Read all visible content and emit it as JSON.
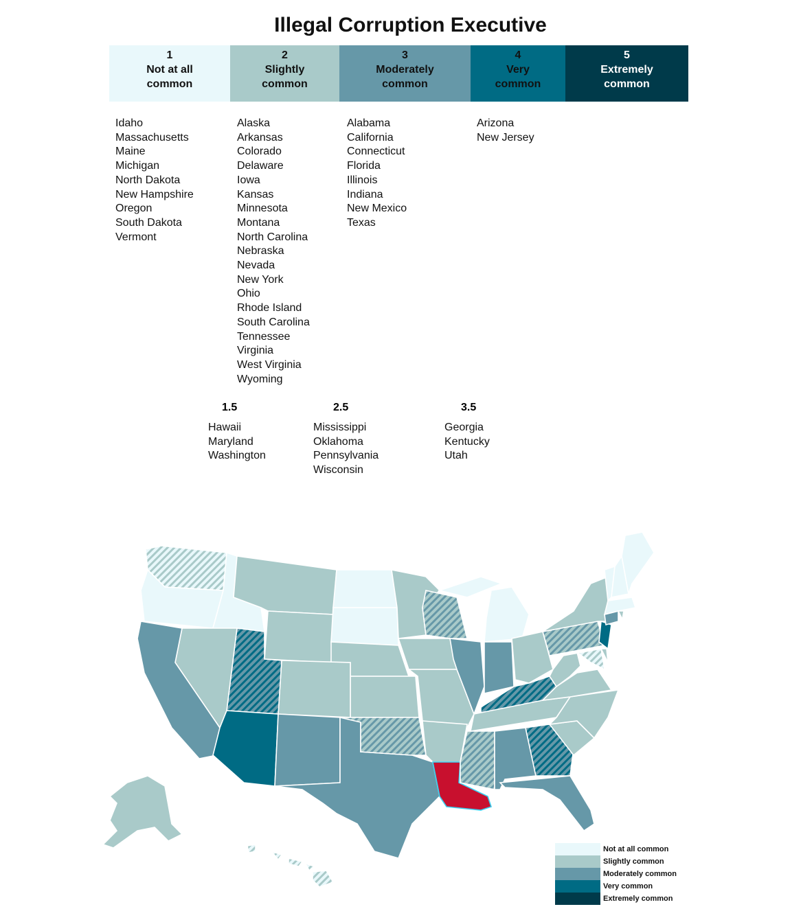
{
  "title": "Illegal Corruption Executive",
  "colors": {
    "1": "#e9f8fb",
    "2": "#a9cac9",
    "3": "#6698a8",
    "4": "#006b84",
    "5": "#003a4a",
    "highlight": "#c8102e"
  },
  "categories": [
    {
      "num": "1",
      "line1": "Not at all",
      "line2": "common",
      "states": [
        "Idaho",
        "Massachusetts",
        "Maine",
        "Michigan",
        "North Dakota",
        "New Hampshire",
        "Oregon",
        "South Dakota",
        "Vermont"
      ]
    },
    {
      "num": "2",
      "line1": "Slightly",
      "line2": "common",
      "states": [
        "Alaska",
        "Arkansas",
        "Colorado",
        "Delaware",
        "Iowa",
        "Kansas",
        "Minnesota",
        "Montana",
        "North Carolina",
        "Nebraska",
        "Nevada",
        "New York",
        "Ohio",
        "Rhode Island",
        "South Carolina",
        "Tennessee",
        "Virginia",
        "West Virginia",
        "Wyoming"
      ]
    },
    {
      "num": "3",
      "line1": "Moderately",
      "line2": "common",
      "states": [
        "Alabama",
        "California",
        "Connecticut",
        "Florida",
        "Illinois",
        "Indiana",
        "New Mexico",
        "Texas"
      ]
    },
    {
      "num": "4",
      "line1": "Very",
      "line2": "common",
      "states": [
        "Arizona",
        "New Jersey"
      ]
    },
    {
      "num": "5",
      "line1": "Extremely",
      "line2": "common",
      "states": []
    }
  ],
  "half_categories": [
    {
      "num": "1.5",
      "states": [
        "Hawaii",
        "Maryland",
        "Washington"
      ]
    },
    {
      "num": "2.5",
      "states": [
        "Mississippi",
        "Oklahoma",
        "Pennsylvania",
        "Wisconsin"
      ]
    },
    {
      "num": "3.5",
      "states": [
        "Georgia",
        "Kentucky",
        "Utah"
      ]
    }
  ],
  "legend": [
    "Not at all common",
    "Slightly common",
    "Moderately common",
    "Very common",
    "Extremely common"
  ],
  "highlighted_state": "Louisiana",
  "chart_data": {
    "type": "choropleth",
    "title": "Illegal Corruption Executive",
    "scale": [
      "1 Not at all common",
      "2 Slightly common",
      "3 Moderately common",
      "4 Very common",
      "5 Extremely common"
    ],
    "values": {
      "WA": 1.5,
      "OR": 1,
      "ID": 1,
      "MT": 2,
      "WY": 2,
      "ND": 1,
      "SD": 1,
      "NE": 2,
      "KS": 2,
      "CO": 2,
      "UT": 3.5,
      "NV": 2,
      "CA": 3,
      "AZ": 4,
      "NM": 3,
      "TX": 3,
      "OK": 2.5,
      "MN": 2,
      "IA": 2,
      "MO": 2,
      "AR": 2,
      "LA": "highlight",
      "WI": 2.5,
      "IL": 3,
      "MI": 1,
      "IN": 3,
      "OH": 2,
      "KY": 3.5,
      "TN": 2,
      "MS": 2.5,
      "AL": 3,
      "GA": 3.5,
      "FL": 3,
      "SC": 2,
      "NC": 2,
      "VA": 2,
      "WV": 2,
      "PA": 2.5,
      "NY": 2,
      "NJ": 4,
      "MD": 1.5,
      "DE": 2,
      "CT": 3,
      "RI": 2,
      "MA": 1,
      "VT": 1,
      "NH": 1,
      "ME": 1,
      "AK": 2,
      "HI": 1.5
    }
  }
}
